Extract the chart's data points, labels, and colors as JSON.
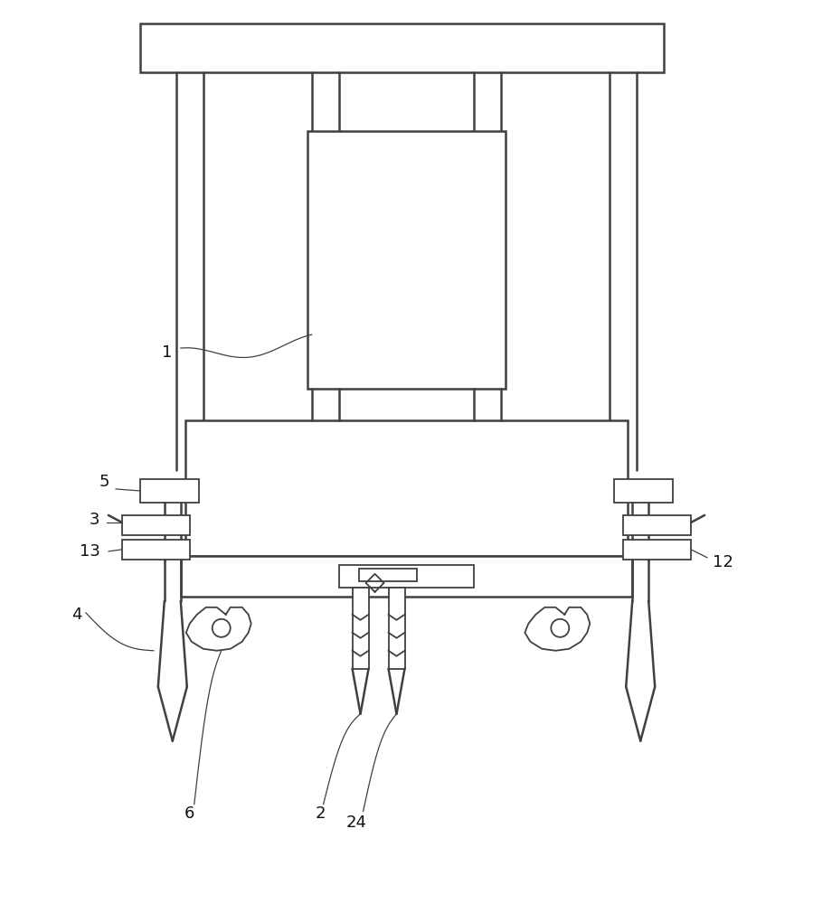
{
  "bg_color": "#ffffff",
  "lc": "#404040",
  "lw": 1.8,
  "lw_thin": 1.3,
  "fs": 12,
  "figure_width": 8.99,
  "figure_height": 10.0
}
